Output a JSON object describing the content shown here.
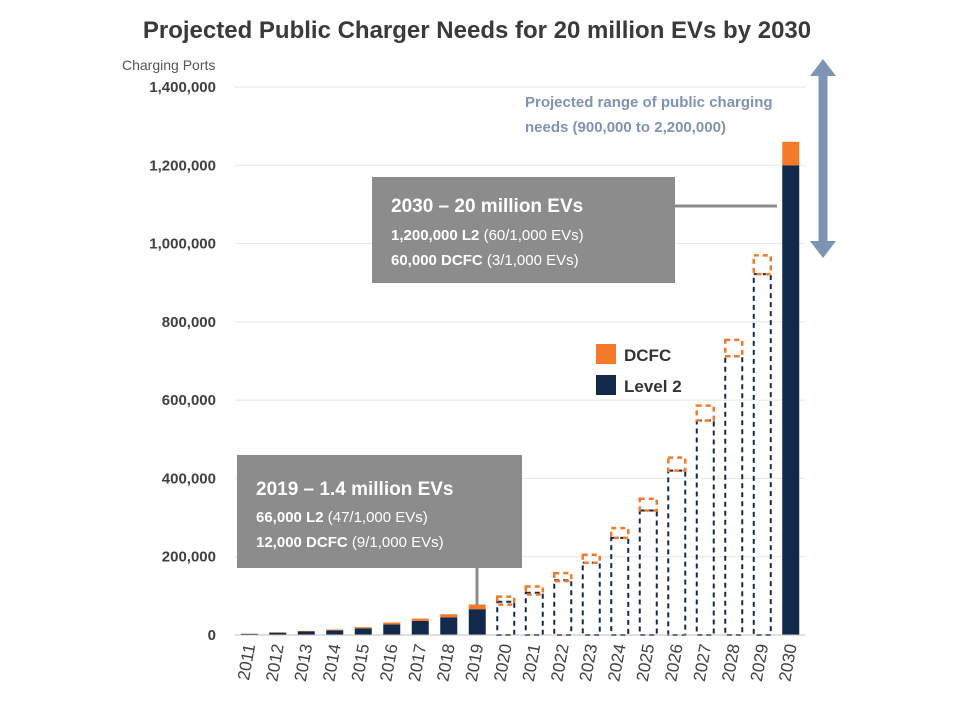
{
  "chart_data": {
    "type": "bar",
    "title": "Projected Public Charger Needs for 20 million EVs by 2030",
    "ylabel": "Charging Ports",
    "ylim": [
      0,
      1400000
    ],
    "yticks": [
      "0",
      "200,000",
      "400,000",
      "600,000",
      "800,000",
      "1,000,000",
      "1,200,000",
      "1,400,000"
    ],
    "categories": [
      "2011",
      "2012",
      "2013",
      "2014",
      "2015",
      "2016",
      "2017",
      "2018",
      "2019",
      "2020",
      "2021",
      "2022",
      "2023",
      "2024",
      "2025",
      "2026",
      "2027",
      "2028",
      "2029",
      "2030"
    ],
    "series": [
      {
        "name": "Level 2",
        "color": "#13294b",
        "values": [
          3000,
          6000,
          9000,
          12000,
          17000,
          27000,
          36000,
          45000,
          66000,
          85000,
          108000,
          140000,
          185000,
          248000,
          318000,
          420000,
          548000,
          712000,
          922000,
          1200000
        ]
      },
      {
        "name": "DCFC",
        "color": "#f47a2a",
        "values": [
          500,
          1000,
          1500,
          2000,
          3000,
          5000,
          6000,
          8000,
          12000,
          13000,
          16000,
          18000,
          20000,
          25000,
          30000,
          33000,
          38000,
          42000,
          48000,
          60000
        ]
      }
    ],
    "projected_from": "2020",
    "legend": [
      {
        "label": "DCFC",
        "color": "#f47a2a"
      },
      {
        "label": "Level 2",
        "color": "#13294b"
      }
    ],
    "legend_position": "center-right",
    "grid": true,
    "annotations": {
      "callout_2030": {
        "title": "2030 – 20 million EVs",
        "line1_bold": "1,200,000 L2",
        "line1_rest": " (60/1,000 EVs)",
        "line2_bold": "60,000 DCFC",
        "line2_rest": " (3/1,000 EVs)"
      },
      "callout_2019": {
        "title": "2019 – 1.4 million EVs",
        "line1_bold": "66,000 L2",
        "line1_rest": " (47/1,000 EVs)",
        "line2_bold": "12,000 DCFC",
        "line2_rest": " (9/1,000 EVs)"
      },
      "range": {
        "line1": "Projected range of public charging",
        "line2": "needs (900,000 to 2,200,000)"
      }
    }
  }
}
